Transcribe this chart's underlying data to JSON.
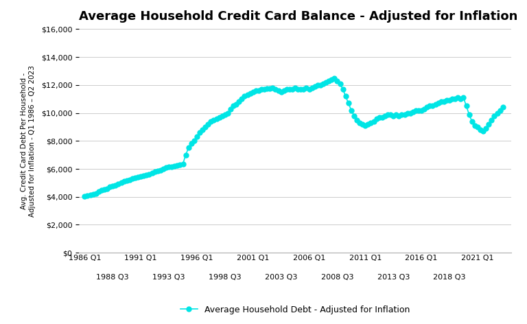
{
  "title": "Average Household Credit Card Balance - Adjusted for Inflation",
  "ylabel_line1": "Avg. Credit Card Debt Per Household -",
  "ylabel_line2": "Adjusted for Inflation - Q1 1986 – Q2 2023",
  "legend_label": "Average Household Debt - Adjusted for Inflation",
  "ylim": [
    0,
    16000
  ],
  "yticks": [
    0,
    2000,
    4000,
    6000,
    8000,
    10000,
    12000,
    14000,
    16000
  ],
  "line_color": "#00E5E5",
  "marker_color": "#00E5E5",
  "background_color": "#ffffff",
  "top_tick_years": [
    1986,
    1991,
    1996,
    2001,
    2006,
    2011,
    2016,
    2021
  ],
  "bot_tick_years": [
    1988.5,
    1993.5,
    1998.5,
    2003.5,
    2008.5,
    2013.5,
    2018.5
  ],
  "xlim": [
    1985.5,
    2024.0
  ],
  "data": [
    [
      1986.0,
      4050
    ],
    [
      1986.25,
      4100
    ],
    [
      1986.5,
      4150
    ],
    [
      1986.75,
      4200
    ],
    [
      1987.0,
      4250
    ],
    [
      1987.25,
      4400
    ],
    [
      1987.5,
      4500
    ],
    [
      1987.75,
      4550
    ],
    [
      1988.0,
      4600
    ],
    [
      1988.25,
      4700
    ],
    [
      1988.5,
      4750
    ],
    [
      1988.75,
      4800
    ],
    [
      1989.0,
      4900
    ],
    [
      1989.25,
      5000
    ],
    [
      1989.5,
      5100
    ],
    [
      1989.75,
      5150
    ],
    [
      1990.0,
      5200
    ],
    [
      1990.25,
      5300
    ],
    [
      1990.5,
      5350
    ],
    [
      1990.75,
      5400
    ],
    [
      1991.0,
      5450
    ],
    [
      1991.25,
      5500
    ],
    [
      1991.5,
      5550
    ],
    [
      1991.75,
      5600
    ],
    [
      1992.0,
      5700
    ],
    [
      1992.25,
      5800
    ],
    [
      1992.5,
      5850
    ],
    [
      1992.75,
      5900
    ],
    [
      1993.0,
      6000
    ],
    [
      1993.25,
      6100
    ],
    [
      1993.5,
      6150
    ],
    [
      1993.75,
      6150
    ],
    [
      1994.0,
      6200
    ],
    [
      1994.25,
      6250
    ],
    [
      1994.5,
      6300
    ],
    [
      1994.75,
      6350
    ],
    [
      1995.0,
      7000
    ],
    [
      1995.25,
      7500
    ],
    [
      1995.5,
      7800
    ],
    [
      1995.75,
      8000
    ],
    [
      1996.0,
      8300
    ],
    [
      1996.25,
      8600
    ],
    [
      1996.5,
      8800
    ],
    [
      1996.75,
      9000
    ],
    [
      1997.0,
      9200
    ],
    [
      1997.25,
      9400
    ],
    [
      1997.5,
      9500
    ],
    [
      1997.75,
      9600
    ],
    [
      1998.0,
      9700
    ],
    [
      1998.25,
      9800
    ],
    [
      1998.5,
      9900
    ],
    [
      1998.75,
      10000
    ],
    [
      1999.0,
      10300
    ],
    [
      1999.25,
      10500
    ],
    [
      1999.5,
      10600
    ],
    [
      1999.75,
      10800
    ],
    [
      2000.0,
      11000
    ],
    [
      2000.25,
      11200
    ],
    [
      2000.5,
      11300
    ],
    [
      2000.75,
      11400
    ],
    [
      2001.0,
      11500
    ],
    [
      2001.25,
      11600
    ],
    [
      2001.5,
      11600
    ],
    [
      2001.75,
      11700
    ],
    [
      2002.0,
      11700
    ],
    [
      2002.25,
      11750
    ],
    [
      2002.5,
      11750
    ],
    [
      2002.75,
      11800
    ],
    [
      2003.0,
      11700
    ],
    [
      2003.25,
      11600
    ],
    [
      2003.5,
      11500
    ],
    [
      2003.75,
      11600
    ],
    [
      2004.0,
      11700
    ],
    [
      2004.25,
      11700
    ],
    [
      2004.5,
      11700
    ],
    [
      2004.75,
      11800
    ],
    [
      2005.0,
      11700
    ],
    [
      2005.25,
      11700
    ],
    [
      2005.5,
      11700
    ],
    [
      2005.75,
      11800
    ],
    [
      2006.0,
      11700
    ],
    [
      2006.25,
      11800
    ],
    [
      2006.5,
      11900
    ],
    [
      2006.75,
      12000
    ],
    [
      2007.0,
      12000
    ],
    [
      2007.25,
      12100
    ],
    [
      2007.5,
      12200
    ],
    [
      2007.75,
      12300
    ],
    [
      2008.0,
      12400
    ],
    [
      2008.25,
      12500
    ],
    [
      2008.5,
      12300
    ],
    [
      2008.75,
      12100
    ],
    [
      2009.0,
      11700
    ],
    [
      2009.25,
      11200
    ],
    [
      2009.5,
      10700
    ],
    [
      2009.75,
      10200
    ],
    [
      2010.0,
      9800
    ],
    [
      2010.25,
      9500
    ],
    [
      2010.5,
      9300
    ],
    [
      2010.75,
      9200
    ],
    [
      2011.0,
      9100
    ],
    [
      2011.25,
      9200
    ],
    [
      2011.5,
      9300
    ],
    [
      2011.75,
      9400
    ],
    [
      2012.0,
      9600
    ],
    [
      2012.25,
      9700
    ],
    [
      2012.5,
      9700
    ],
    [
      2012.75,
      9800
    ],
    [
      2013.0,
      9900
    ],
    [
      2013.25,
      9900
    ],
    [
      2013.5,
      9800
    ],
    [
      2013.75,
      9900
    ],
    [
      2014.0,
      9800
    ],
    [
      2014.25,
      9900
    ],
    [
      2014.5,
      9900
    ],
    [
      2014.75,
      10000
    ],
    [
      2015.0,
      10000
    ],
    [
      2015.25,
      10100
    ],
    [
      2015.5,
      10200
    ],
    [
      2015.75,
      10200
    ],
    [
      2016.0,
      10200
    ],
    [
      2016.25,
      10300
    ],
    [
      2016.5,
      10400
    ],
    [
      2016.75,
      10500
    ],
    [
      2017.0,
      10500
    ],
    [
      2017.25,
      10600
    ],
    [
      2017.5,
      10700
    ],
    [
      2017.75,
      10800
    ],
    [
      2018.0,
      10800
    ],
    [
      2018.25,
      10900
    ],
    [
      2018.5,
      10900
    ],
    [
      2018.75,
      11000
    ],
    [
      2019.0,
      11000
    ],
    [
      2019.25,
      11100
    ],
    [
      2019.5,
      11000
    ],
    [
      2019.75,
      11100
    ],
    [
      2020.0,
      10500
    ],
    [
      2020.25,
      9900
    ],
    [
      2020.5,
      9400
    ],
    [
      2020.75,
      9100
    ],
    [
      2021.0,
      9000
    ],
    [
      2021.25,
      8800
    ],
    [
      2021.5,
      8700
    ],
    [
      2021.75,
      8900
    ],
    [
      2022.0,
      9200
    ],
    [
      2022.25,
      9500
    ],
    [
      2022.5,
      9800
    ],
    [
      2022.75,
      10000
    ],
    [
      2023.0,
      10200
    ],
    [
      2023.25,
      10400
    ]
  ]
}
